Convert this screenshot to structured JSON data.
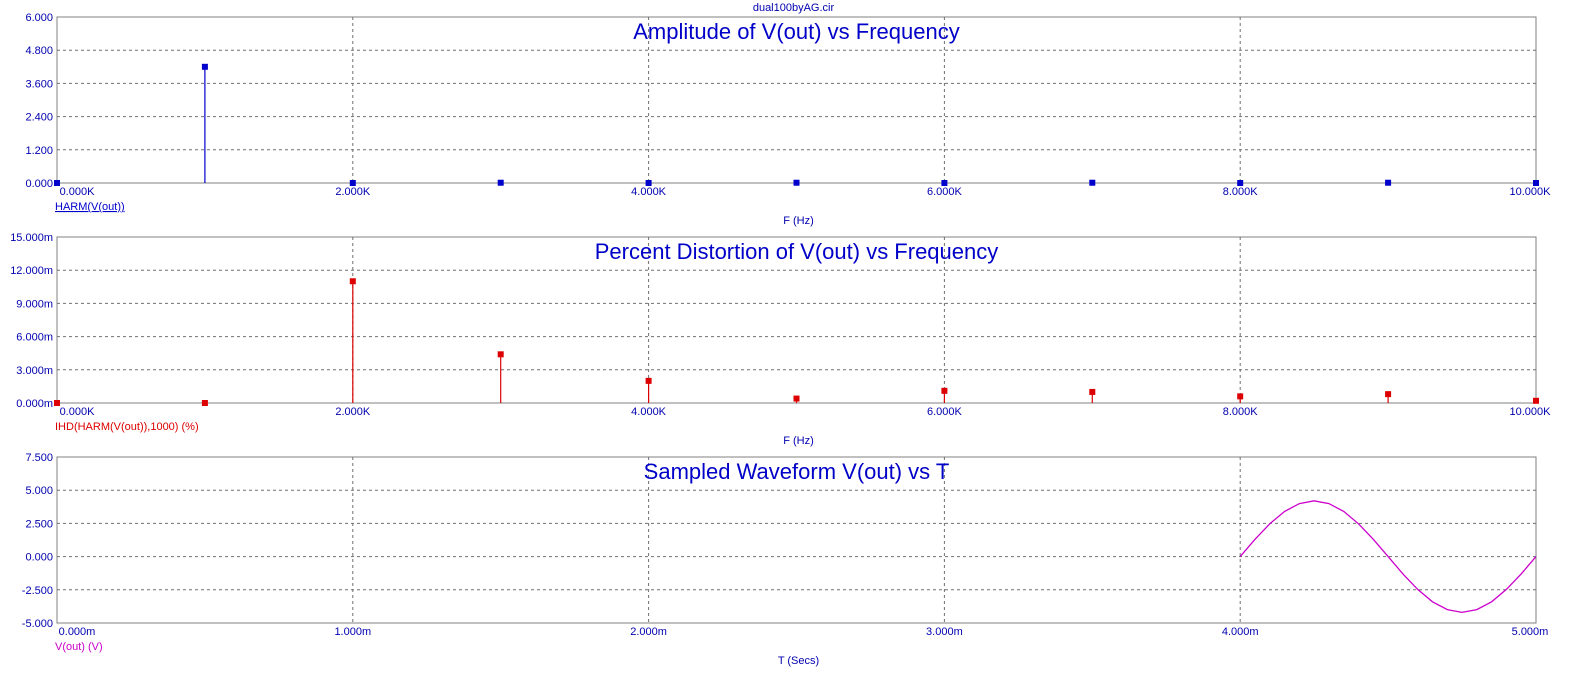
{
  "window": {
    "title": "dual100byAG.cir"
  },
  "chart_data": [
    {
      "type": "bar",
      "title": "Amplitude of V(out) vs Frequency",
      "xlabel": "F (Hz)",
      "ylabel": "",
      "xlim": [
        0,
        10000
      ],
      "ylim": [
        0,
        6
      ],
      "x_ticks": [
        "0.000K",
        "2.000K",
        "4.000K",
        "6.000K",
        "8.000K",
        "10.000K"
      ],
      "y_ticks": [
        "0.000",
        "1.200",
        "2.400",
        "3.600",
        "4.800",
        "6.000"
      ],
      "grid": true,
      "series": [
        {
          "name": "HARM(V(out))",
          "color": "#0000cc",
          "x": [
            0,
            1000,
            2000,
            3000,
            4000,
            5000,
            6000,
            7000,
            8000,
            9000,
            10000
          ],
          "values": [
            0.0,
            4.2,
            0.0,
            0.01,
            0.0,
            0.01,
            0.0,
            0.01,
            0.0,
            0.01,
            0.0
          ]
        }
      ]
    },
    {
      "type": "bar",
      "title": "Percent Distortion of V(out) vs Frequency",
      "xlabel": "F (Hz)",
      "ylabel": "",
      "xlim": [
        0,
        10000
      ],
      "ylim": [
        0,
        15
      ],
      "x_ticks": [
        "0.000K",
        "2.000K",
        "4.000K",
        "6.000K",
        "8.000K",
        "10.000K"
      ],
      "y_ticks": [
        "0.000m",
        "3.000m",
        "6.000m",
        "9.000m",
        "12.000m",
        "15.000m"
      ],
      "grid": true,
      "series": [
        {
          "name": "IHD(HARM(V(out)),1000) (%)",
          "color": "#dd0000",
          "x": [
            0,
            1000,
            2000,
            3000,
            4000,
            5000,
            6000,
            7000,
            8000,
            9000,
            10000
          ],
          "values": [
            0.0,
            0.0,
            11.0,
            4.4,
            2.0,
            0.4,
            1.1,
            1.0,
            0.6,
            0.8,
            0.2
          ]
        }
      ]
    },
    {
      "type": "line",
      "title": "Sampled Waveform  V(out) vs T",
      "xlabel": "T (Secs)",
      "ylabel": "",
      "xlim": [
        0,
        5
      ],
      "ylim": [
        -5,
        7.5
      ],
      "x_unit": "ms",
      "x_ticks": [
        "0.000m",
        "1.000m",
        "2.000m",
        "3.000m",
        "4.000m",
        "5.000m"
      ],
      "y_ticks": [
        "-5.000",
        "-2.500",
        "0.000",
        "2.500",
        "5.000",
        "7.500"
      ],
      "grid": true,
      "series": [
        {
          "name": "V(out) (V)",
          "color": "#cc00cc",
          "x": [
            4.0,
            4.05,
            4.1,
            4.15,
            4.2,
            4.25,
            4.3,
            4.35,
            4.4,
            4.45,
            4.5,
            4.55,
            4.6,
            4.65,
            4.7,
            4.75,
            4.8,
            4.85,
            4.9,
            4.95,
            5.0
          ],
          "values": [
            0.0,
            1.3,
            2.47,
            3.4,
            3.99,
            4.2,
            3.99,
            3.4,
            2.47,
            1.3,
            0.0,
            -1.3,
            -2.47,
            -3.4,
            -3.99,
            -4.2,
            -3.99,
            -3.4,
            -2.47,
            -1.3,
            0.0
          ]
        }
      ]
    }
  ]
}
